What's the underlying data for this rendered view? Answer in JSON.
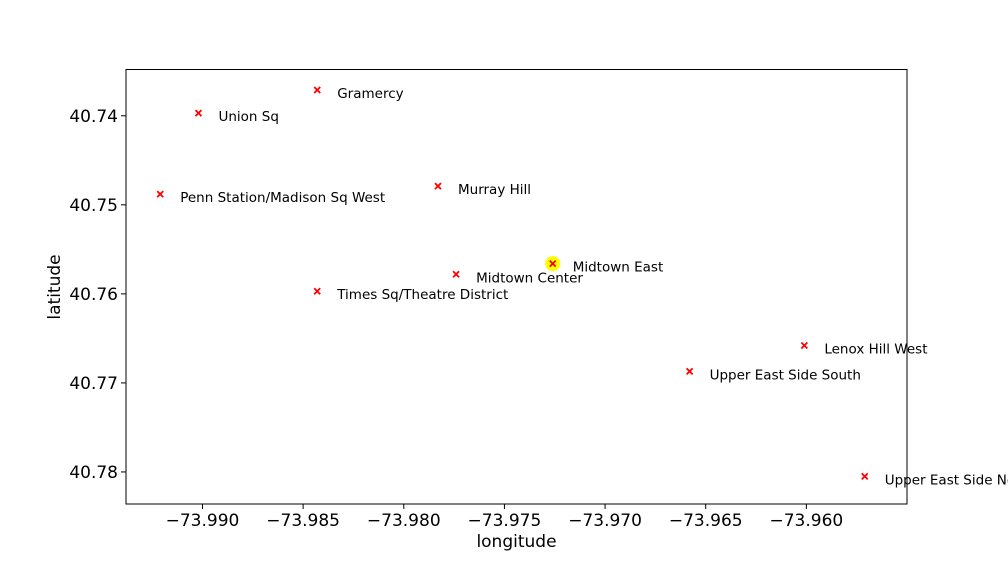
{
  "chart_data": {
    "type": "scatter",
    "xlabel": "longitude",
    "ylabel": "latitude",
    "xlim": [
      -73.9938,
      -73.955
    ],
    "ylim": [
      40.7836,
      40.7348
    ],
    "y_inverted": true,
    "grid": false,
    "marker": "x",
    "marker_color": "#ff0000",
    "highlight_color": "#ffff00",
    "x_ticks": [
      {
        "value": -73.99,
        "label": "−73.990"
      },
      {
        "value": -73.985,
        "label": "−73.985"
      },
      {
        "value": -73.98,
        "label": "−73.980"
      },
      {
        "value": -73.975,
        "label": "−73.975"
      },
      {
        "value": -73.97,
        "label": "−73.970"
      },
      {
        "value": -73.965,
        "label": "−73.965"
      },
      {
        "value": -73.96,
        "label": "−73.960"
      }
    ],
    "y_ticks": [
      {
        "value": 40.74,
        "label": "40.74"
      },
      {
        "value": 40.75,
        "label": "40.75"
      },
      {
        "value": 40.76,
        "label": "40.76"
      },
      {
        "value": 40.77,
        "label": "40.77"
      },
      {
        "value": 40.78,
        "label": "40.78"
      }
    ],
    "points": [
      {
        "label": "Gramercy",
        "x": -73.9843,
        "y": 40.7371,
        "highlight": false
      },
      {
        "label": "Union Sq",
        "x": -73.9902,
        "y": 40.7397,
        "highlight": false
      },
      {
        "label": "Murray Hill",
        "x": -73.9783,
        "y": 40.7479,
        "highlight": false
      },
      {
        "label": "Penn Station/Madison Sq West",
        "x": -73.9921,
        "y": 40.7488,
        "highlight": false
      },
      {
        "label": "Midtown East",
        "x": -73.9726,
        "y": 40.7566,
        "highlight": true
      },
      {
        "label": "Midtown Center",
        "x": -73.9774,
        "y": 40.7578,
        "highlight": false
      },
      {
        "label": "Times Sq/Theatre District",
        "x": -73.9843,
        "y": 40.7597,
        "highlight": false
      },
      {
        "label": "Lenox Hill West",
        "x": -73.9601,
        "y": 40.7658,
        "highlight": false
      },
      {
        "label": "Upper East Side South",
        "x": -73.9658,
        "y": 40.7687,
        "highlight": false
      },
      {
        "label": "Upper East Side North",
        "x": -73.9571,
        "y": 40.7805,
        "highlight": false
      }
    ]
  }
}
